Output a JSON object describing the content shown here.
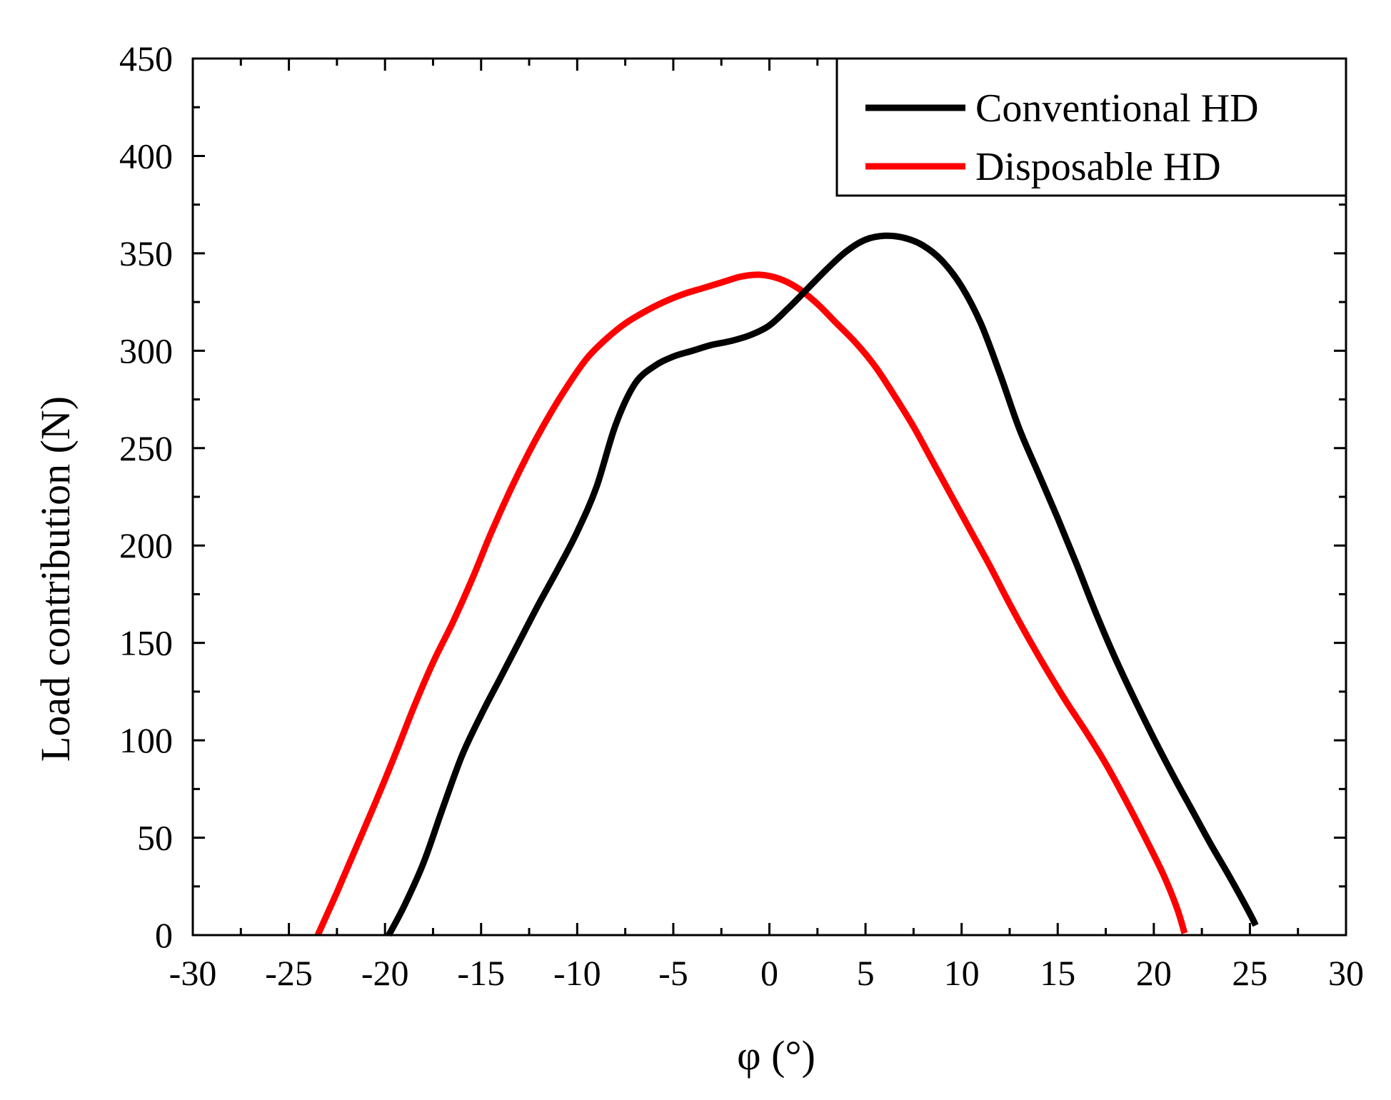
{
  "chart_data": {
    "type": "line",
    "title": "",
    "xlabel": "φ (°)",
    "ylabel": "Load contribution (N)",
    "xlim": [
      -30,
      30
    ],
    "ylim": [
      0,
      450
    ],
    "xticks": [
      -30,
      -25,
      -20,
      -15,
      -10,
      -5,
      0,
      5,
      10,
      15,
      20,
      25,
      30
    ],
    "yticks": [
      0,
      50,
      100,
      150,
      200,
      250,
      300,
      350,
      400,
      450
    ],
    "x_minor_step": 2.5,
    "y_minor_step": 25,
    "grid": false,
    "legend_position": "top-right",
    "series": [
      {
        "name": "Conventional HD",
        "color": "#000000",
        "points": [
          [
            -19.8,
            0
          ],
          [
            -19,
            15
          ],
          [
            -18,
            37
          ],
          [
            -17,
            65
          ],
          [
            -16,
            92
          ],
          [
            -15,
            113
          ],
          [
            -14,
            132
          ],
          [
            -13,
            151
          ],
          [
            -12,
            170
          ],
          [
            -11,
            188
          ],
          [
            -10,
            207
          ],
          [
            -9,
            230
          ],
          [
            -8,
            262
          ],
          [
            -7,
            283
          ],
          [
            -6,
            292
          ],
          [
            -5,
            297
          ],
          [
            -4,
            300
          ],
          [
            -3,
            303
          ],
          [
            -2,
            305
          ],
          [
            -1,
            308
          ],
          [
            0,
            313
          ],
          [
            1,
            322
          ],
          [
            2,
            332
          ],
          [
            3,
            342
          ],
          [
            4,
            351
          ],
          [
            5,
            357
          ],
          [
            6,
            359
          ],
          [
            7,
            358
          ],
          [
            8,
            354
          ],
          [
            9,
            346
          ],
          [
            10,
            333
          ],
          [
            11,
            314
          ],
          [
            12,
            288
          ],
          [
            13,
            260
          ],
          [
            14,
            237
          ],
          [
            15,
            214
          ],
          [
            16,
            190
          ],
          [
            17,
            165
          ],
          [
            18,
            142
          ],
          [
            19,
            121
          ],
          [
            20,
            101
          ],
          [
            21,
            82
          ],
          [
            22,
            64
          ],
          [
            23,
            46
          ],
          [
            24,
            29
          ],
          [
            25,
            11
          ],
          [
            25.3,
            5
          ]
        ]
      },
      {
        "name": "Disposable HD",
        "color": "#ff0000",
        "points": [
          [
            -23.5,
            0
          ],
          [
            -22.5,
            22
          ],
          [
            -21.5,
            45
          ],
          [
            -20.5,
            68
          ],
          [
            -19.5,
            92
          ],
          [
            -18.5,
            117
          ],
          [
            -17.5,
            140
          ],
          [
            -16.5,
            160
          ],
          [
            -15.5,
            182
          ],
          [
            -14.5,
            206
          ],
          [
            -13.5,
            228
          ],
          [
            -12.5,
            248
          ],
          [
            -11.5,
            266
          ],
          [
            -10.5,
            282
          ],
          [
            -9.5,
            296
          ],
          [
            -8.5,
            306
          ],
          [
            -7.5,
            314
          ],
          [
            -6.5,
            320
          ],
          [
            -5.5,
            325
          ],
          [
            -4.5,
            329
          ],
          [
            -3.5,
            332
          ],
          [
            -2.5,
            335
          ],
          [
            -1.5,
            338
          ],
          [
            -0.5,
            339
          ],
          [
            0.5,
            337
          ],
          [
            1.5,
            332
          ],
          [
            2.5,
            324
          ],
          [
            3.5,
            314
          ],
          [
            4.5,
            304
          ],
          [
            5.5,
            292
          ],
          [
            6.5,
            277
          ],
          [
            7.5,
            261
          ],
          [
            8.5,
            243
          ],
          [
            9.5,
            225
          ],
          [
            10.5,
            207
          ],
          [
            11.5,
            189
          ],
          [
            12.5,
            170
          ],
          [
            13.5,
            152
          ],
          [
            14.5,
            135
          ],
          [
            15.5,
            119
          ],
          [
            16.5,
            104
          ],
          [
            17.5,
            88
          ],
          [
            18.5,
            70
          ],
          [
            19.5,
            51
          ],
          [
            20.5,
            31
          ],
          [
            21.2,
            14
          ],
          [
            21.6,
            1
          ]
        ]
      }
    ]
  }
}
